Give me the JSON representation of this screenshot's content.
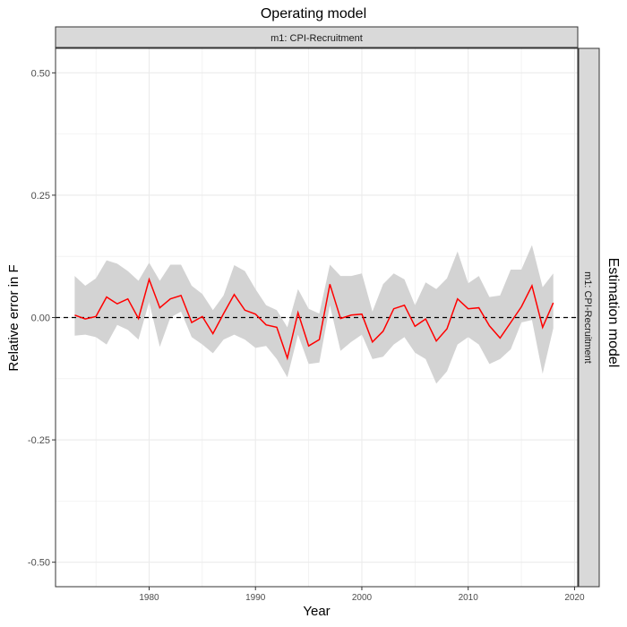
{
  "chart_data": {
    "type": "line",
    "title": "Operating model",
    "column_facet_label": "m1: CPI-Recruitment",
    "row_facet_title": "Estimation model",
    "row_facet_label": "m1: CPI-Recruitment",
    "xlabel": "Year",
    "ylabel": "Relative error in F",
    "xlim": [
      1971.2,
      2020.3
    ],
    "ylim": [
      -0.55,
      0.55
    ],
    "x_ticks": [
      1980,
      1990,
      2000,
      2010,
      2020
    ],
    "x_tick_labels": [
      "1980",
      "1990",
      "2000",
      "2010",
      "2020"
    ],
    "y_ticks": [
      0.5,
      0.25,
      0.0,
      -0.25,
      -0.5
    ],
    "y_tick_labels": [
      "0.50",
      "0.25",
      "0.00",
      "-0.25",
      "-0.50"
    ],
    "reference_line": {
      "y": 0,
      "style": "dashed"
    },
    "grid": true,
    "colors": {
      "line": "#ff0000",
      "ribbon": "#d3d3d3",
      "strip": "#d9d9d9",
      "grid": "#ebebeb"
    },
    "x": [
      1973,
      1974,
      1975,
      1976,
      1977,
      1978,
      1979,
      1980,
      1981,
      1982,
      1983,
      1984,
      1985,
      1986,
      1987,
      1988,
      1989,
      1990,
      1991,
      1992,
      1993,
      1994,
      1995,
      1996,
      1997,
      1998,
      1999,
      2000,
      2001,
      2002,
      2003,
      2004,
      2005,
      2006,
      2007,
      2008,
      2009,
      2010,
      2011,
      2012,
      2013,
      2014,
      2015,
      2016,
      2017,
      2018
    ],
    "series": [
      {
        "values": [
          0.005,
          -0.003,
          0.002,
          0.042,
          0.028,
          0.038,
          -0.002,
          0.078,
          0.02,
          0.038,
          0.045,
          -0.01,
          0.002,
          -0.033,
          0.008,
          0.047,
          0.015,
          0.007,
          -0.015,
          -0.02,
          -0.083,
          0.01,
          -0.058,
          -0.045,
          0.068,
          -0.002,
          0.005,
          0.007,
          -0.05,
          -0.028,
          0.018,
          0.025,
          -0.018,
          -0.003,
          -0.048,
          -0.023,
          0.038,
          0.018,
          0.02,
          -0.017,
          -0.042,
          -0.01,
          0.022,
          0.065,
          -0.02,
          0.03
        ],
        "lower": [
          -0.037,
          -0.035,
          -0.04,
          -0.055,
          -0.015,
          -0.025,
          -0.045,
          0.032,
          -0.06,
          0.0,
          0.012,
          -0.04,
          -0.055,
          -0.073,
          -0.045,
          -0.035,
          -0.045,
          -0.062,
          -0.058,
          -0.085,
          -0.122,
          -0.035,
          -0.095,
          -0.092,
          0.025,
          -0.068,
          -0.05,
          -0.035,
          -0.085,
          -0.08,
          -0.055,
          -0.04,
          -0.072,
          -0.085,
          -0.135,
          -0.11,
          -0.055,
          -0.04,
          -0.055,
          -0.095,
          -0.085,
          -0.065,
          -0.01,
          -0.005,
          -0.115,
          -0.022
        ],
        "upper": [
          0.085,
          0.065,
          0.08,
          0.117,
          0.11,
          0.095,
          0.075,
          0.112,
          0.075,
          0.108,
          0.108,
          0.065,
          0.048,
          0.015,
          0.045,
          0.107,
          0.095,
          0.058,
          0.025,
          0.015,
          -0.02,
          0.058,
          0.018,
          0.008,
          0.108,
          0.085,
          0.085,
          0.09,
          0.012,
          0.068,
          0.09,
          0.078,
          0.025,
          0.072,
          0.058,
          0.08,
          0.135,
          0.07,
          0.085,
          0.042,
          0.045,
          0.098,
          0.098,
          0.148,
          0.062,
          0.09
        ]
      }
    ]
  }
}
